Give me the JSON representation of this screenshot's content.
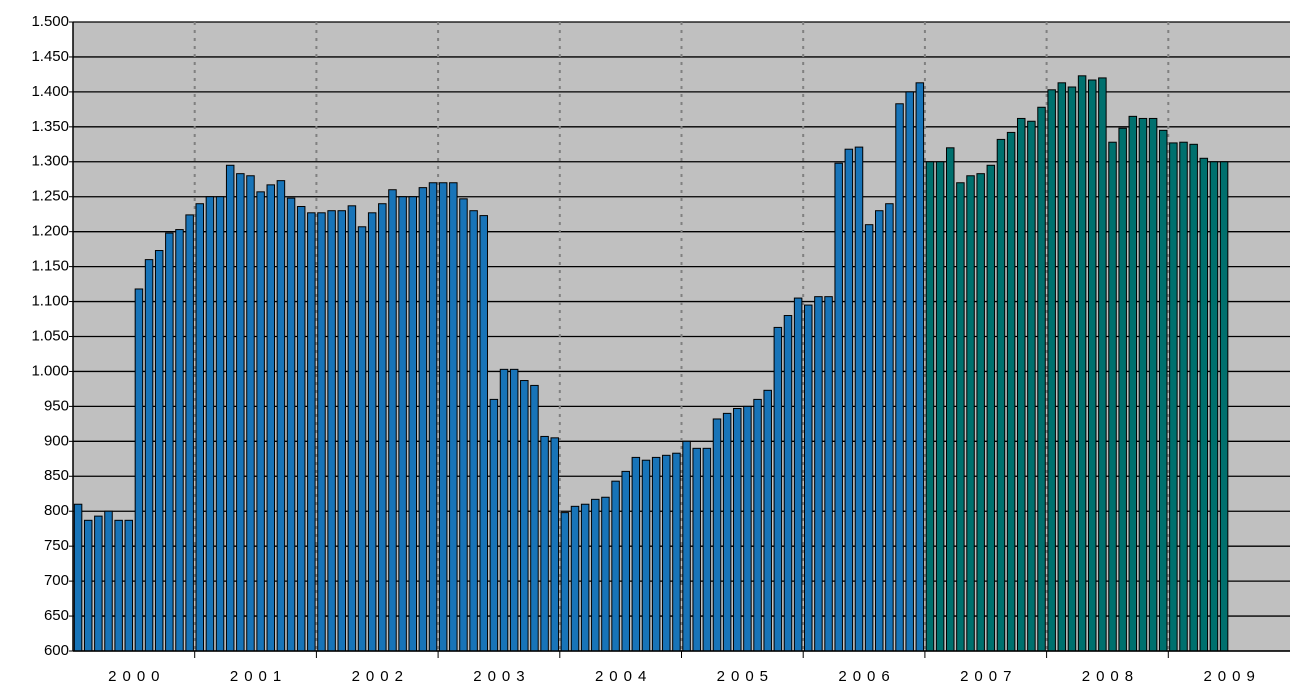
{
  "chart_data": {
    "type": "bar",
    "groups": [
      "2000",
      "2001",
      "2002",
      "2003",
      "2004",
      "2005",
      "2006",
      "2007",
      "2008",
      "2009"
    ],
    "bars_per_group": 12,
    "series": [
      {
        "color": "#1874b8",
        "values": [
          810,
          787,
          793,
          800,
          787,
          787,
          1118,
          1160,
          1173,
          1198,
          1203,
          1224,
          1240,
          1250,
          1250,
          1295,
          1283,
          1280,
          1257,
          1267,
          1273,
          1248,
          1236,
          1227,
          1227,
          1230,
          1230,
          1237,
          1207,
          1227,
          1240,
          1260,
          1250,
          1250,
          1263,
          1270,
          1270,
          1270,
          1247,
          1230,
          1223,
          960,
          1003,
          1003,
          987,
          980,
          907,
          905,
          798,
          807,
          810,
          817,
          820,
          843,
          857,
          877,
          873,
          877,
          880,
          883,
          900,
          890,
          890,
          932,
          940,
          947,
          950,
          960,
          973,
          1063,
          1080,
          1105,
          1095,
          1107,
          1107,
          1298,
          1318,
          1321,
          1210,
          1230,
          1240,
          1383,
          1400,
          1413,
          null,
          null,
          null,
          null,
          null,
          null,
          null,
          null,
          null,
          null,
          null,
          null,
          null,
          null,
          null,
          null,
          null,
          null,
          null,
          null,
          null,
          null,
          null,
          null,
          null,
          null,
          null,
          null,
          null,
          null,
          null,
          null,
          null,
          null,
          null,
          null
        ]
      },
      {
        "color": "#00706e",
        "values": [
          null,
          null,
          null,
          null,
          null,
          null,
          null,
          null,
          null,
          null,
          null,
          null,
          null,
          null,
          null,
          null,
          null,
          null,
          null,
          null,
          null,
          null,
          null,
          null,
          null,
          null,
          null,
          null,
          null,
          null,
          null,
          null,
          null,
          null,
          null,
          null,
          null,
          null,
          null,
          null,
          null,
          null,
          null,
          null,
          null,
          null,
          null,
          null,
          null,
          null,
          null,
          null,
          null,
          null,
          null,
          null,
          null,
          null,
          null,
          null,
          null,
          null,
          null,
          null,
          null,
          null,
          null,
          null,
          null,
          null,
          null,
          null,
          null,
          null,
          null,
          null,
          null,
          null,
          null,
          null,
          null,
          null,
          null,
          null,
          1300,
          1300,
          1320,
          1270,
          1280,
          1283,
          1295,
          1332,
          1342,
          1362,
          1358,
          1378,
          1403,
          1413,
          1407,
          1423,
          1417,
          1420,
          1328,
          1348,
          1365,
          1362,
          1362,
          1345,
          1327,
          1328,
          1325,
          1305,
          1300,
          1300,
          null,
          null,
          null,
          null,
          null,
          null
        ]
      }
    ],
    "ylim": [
      600,
      1500
    ],
    "yticks": [
      600,
      650,
      700,
      750,
      800,
      850,
      900,
      950,
      {
        "value": 1000,
        "label": "1.000"
      },
      {
        "value": 1050,
        "label": "1.050"
      },
      {
        "value": 1100,
        "label": "1.100"
      },
      {
        "value": 1150,
        "label": "1.150"
      },
      {
        "value": 1200,
        "label": "1.200"
      },
      {
        "value": 1250,
        "label": "1.250"
      },
      {
        "value": 1300,
        "label": "1.300"
      },
      {
        "value": 1350,
        "label": "1.350"
      },
      {
        "value": 1400,
        "label": "1.400"
      },
      {
        "value": 1450,
        "label": "1.450"
      },
      {
        "value": 1500,
        "label": "1.500"
      }
    ],
    "grid": true,
    "group_grid": true
  }
}
